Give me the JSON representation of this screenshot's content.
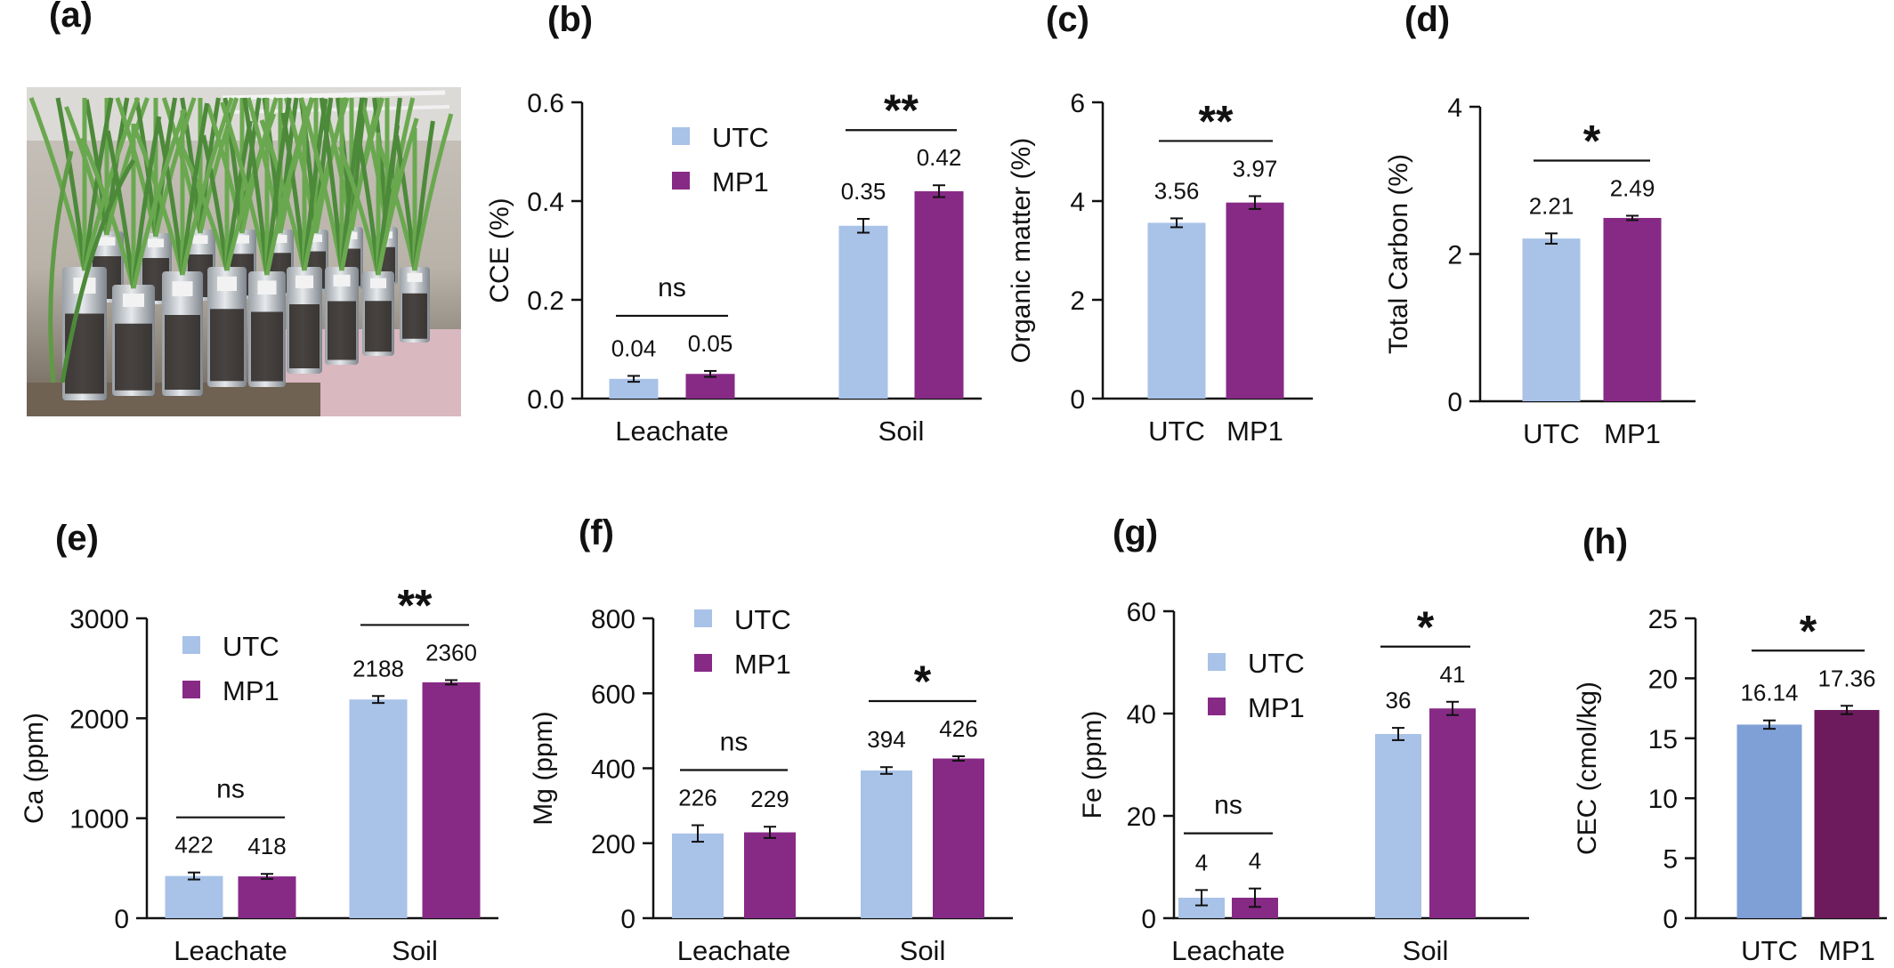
{
  "panel_labels": [
    "(a)",
    "(b)",
    "(c)",
    "(d)",
    "(e)",
    "(f)",
    "(g)",
    "(h)"
  ],
  "photo": {
    "subject": "photo-of-plants-in-cylinders-icon"
  },
  "colors": {
    "utc": "#a8c2e8",
    "mp1": "#872a86",
    "utc_h": "#7fa0d6",
    "mp1_h": "#6e1b5e"
  },
  "legend": {
    "utc": "UTC",
    "mp1": "MP1"
  },
  "chart_data": [
    {
      "id": "b",
      "type": "bar",
      "ylabel": "CCE (%)",
      "ylim": [
        0,
        0.6
      ],
      "yticks": [
        "0.0",
        "0.2",
        "0.4",
        "0.6"
      ],
      "categories": [
        "Leachate",
        "Soil"
      ],
      "series": [
        {
          "name": "UTC",
          "values": [
            0.04,
            0.35
          ],
          "errors": [
            0.006,
            0.014
          ],
          "labels": [
            "0.04",
            "0.35"
          ]
        },
        {
          "name": "MP1",
          "values": [
            0.05,
            0.42
          ],
          "errors": [
            0.006,
            0.012
          ],
          "labels": [
            "0.05",
            "0.42"
          ]
        }
      ],
      "significance": [
        "ns",
        "**"
      ],
      "legend": "top-left"
    },
    {
      "id": "c",
      "type": "bar",
      "ylabel": "Organic matter (%)",
      "ylim": [
        0,
        6
      ],
      "yticks": [
        "0",
        "2",
        "4",
        "6"
      ],
      "categories": [
        "UTC",
        "MP1"
      ],
      "series": [
        {
          "name": "",
          "values": [
            3.56,
            3.97
          ],
          "errors": [
            0.09,
            0.13
          ],
          "labels": [
            "3.56",
            "3.97"
          ]
        }
      ],
      "significance": [
        "**"
      ]
    },
    {
      "id": "d",
      "type": "bar",
      "ylabel": "Total Carbon (%)",
      "ylim": [
        0,
        4
      ],
      "yticks": [
        "0",
        "2",
        "4"
      ],
      "categories": [
        "UTC",
        "MP1"
      ],
      "series": [
        {
          "name": "",
          "values": [
            2.21,
            2.49
          ],
          "errors": [
            0.07,
            0.03
          ],
          "labels": [
            "2.21",
            "2.49"
          ]
        }
      ],
      "significance": [
        "*"
      ]
    },
    {
      "id": "e",
      "type": "bar",
      "ylabel": "Ca (ppm)",
      "ylim": [
        0,
        3000
      ],
      "yticks": [
        "0",
        "1000",
        "2000",
        "3000"
      ],
      "categories": [
        "Leachate",
        "Soil"
      ],
      "series": [
        {
          "name": "UTC",
          "values": [
            422,
            2188
          ],
          "errors": [
            35,
            35
          ],
          "labels": [
            "422",
            "2188"
          ]
        },
        {
          "name": "MP1",
          "values": [
            418,
            2360
          ],
          "errors": [
            25,
            22
          ],
          "labels": [
            "418",
            "2360"
          ]
        }
      ],
      "significance": [
        "ns",
        "**"
      ],
      "legend": "top-left"
    },
    {
      "id": "f",
      "type": "bar",
      "ylabel": "Mg (ppm)",
      "ylim": [
        0,
        800
      ],
      "yticks": [
        "0",
        "200",
        "400",
        "600",
        "800"
      ],
      "categories": [
        "Leachate",
        "Soil"
      ],
      "series": [
        {
          "name": "UTC",
          "values": [
            226,
            394
          ],
          "errors": [
            22,
            9
          ],
          "labels": [
            "226",
            "394"
          ]
        },
        {
          "name": "MP1",
          "values": [
            229,
            426
          ],
          "errors": [
            15,
            6
          ],
          "labels": [
            "229",
            "426"
          ]
        }
      ],
      "significance": [
        "ns",
        "*"
      ],
      "legend": "top-left"
    },
    {
      "id": "g",
      "type": "bar",
      "ylabel": "Fe (ppm)",
      "ylim": [
        0,
        60
      ],
      "yticks": [
        "0",
        "20",
        "40",
        "60"
      ],
      "categories": [
        "Leachate",
        "Soil"
      ],
      "series": [
        {
          "name": "UTC",
          "values": [
            4,
            36
          ],
          "errors": [
            1.5,
            1.2
          ],
          "labels": [
            "4",
            "36"
          ]
        },
        {
          "name": "MP1",
          "values": [
            4,
            41
          ],
          "errors": [
            1.8,
            1.3
          ],
          "labels": [
            "4",
            "41"
          ]
        }
      ],
      "significance": [
        "ns",
        "*"
      ],
      "legend": "top-left"
    },
    {
      "id": "h",
      "type": "bar",
      "ylabel": "CEC (cmol/kg)",
      "ylim": [
        0,
        25
      ],
      "yticks": [
        "0",
        "5",
        "10",
        "15",
        "20",
        "25"
      ],
      "categories": [
        "UTC",
        "MP1"
      ],
      "series": [
        {
          "name": "",
          "values": [
            16.14,
            17.36
          ],
          "errors": [
            0.35,
            0.35
          ],
          "labels": [
            "16.14",
            "17.36"
          ]
        }
      ],
      "significance": [
        "*"
      ]
    }
  ]
}
